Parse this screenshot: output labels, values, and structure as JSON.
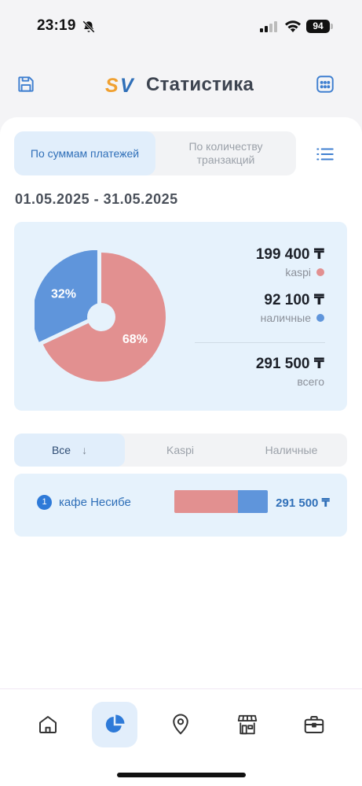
{
  "status_bar": {
    "time": "23:19",
    "battery": "94",
    "icons": [
      "bell-slash-icon",
      "cellular-signal-icon",
      "wifi-icon",
      "battery-icon"
    ]
  },
  "header": {
    "logo_text": "SV",
    "title": "Статистика",
    "icons": [
      "save-icon",
      "calendar-icon"
    ]
  },
  "mode_toggle": {
    "by_amount_label": "По суммам платежей",
    "by_count_label": "По количеству транзакций",
    "selected": "by_amount",
    "list_icon": "list-icon"
  },
  "date_range": "01.05.2025 - 31.05.2025",
  "summary": {
    "pie": {
      "slices": [
        {
          "name": "kaspi",
          "percent": 68,
          "label": "68%",
          "color": "#e29090"
        },
        {
          "name": "наличные",
          "percent": 32,
          "label": "32%",
          "color": "#5f95db"
        }
      ]
    },
    "kaspi": {
      "amount": "199 400 ₸",
      "label": "kaspi",
      "color": "#e29090"
    },
    "cash": {
      "amount": "92 100 ₸",
      "label": "наличные",
      "color": "#5f95db"
    },
    "total": {
      "amount": "291 500 ₸",
      "label": "всего"
    }
  },
  "filter": {
    "all_label": "Все",
    "sort_glyph": "↓",
    "kaspi_label": "Kaspi",
    "cash_label": "Наличные",
    "selected": "all"
  },
  "merchants": [
    {
      "rank": "1",
      "name": "кафе Несибе",
      "amount": "291 500 ₸",
      "kaspi_share": 0.684,
      "cash_share": 0.316
    }
  ],
  "tabbar": {
    "tabs": [
      {
        "icon": "home-icon",
        "selected": false
      },
      {
        "icon": "pie-chart-icon",
        "selected": true
      },
      {
        "icon": "location-pin-icon",
        "selected": false
      },
      {
        "icon": "store-icon",
        "selected": false
      },
      {
        "icon": "briefcase-icon",
        "selected": false
      }
    ]
  },
  "colors": {
    "accent": "#2f6fb8",
    "kaspi": "#e29090",
    "cash": "#5f95db",
    "card_bg": "#e6f2fc",
    "selected_bg": "#e1eefb"
  }
}
